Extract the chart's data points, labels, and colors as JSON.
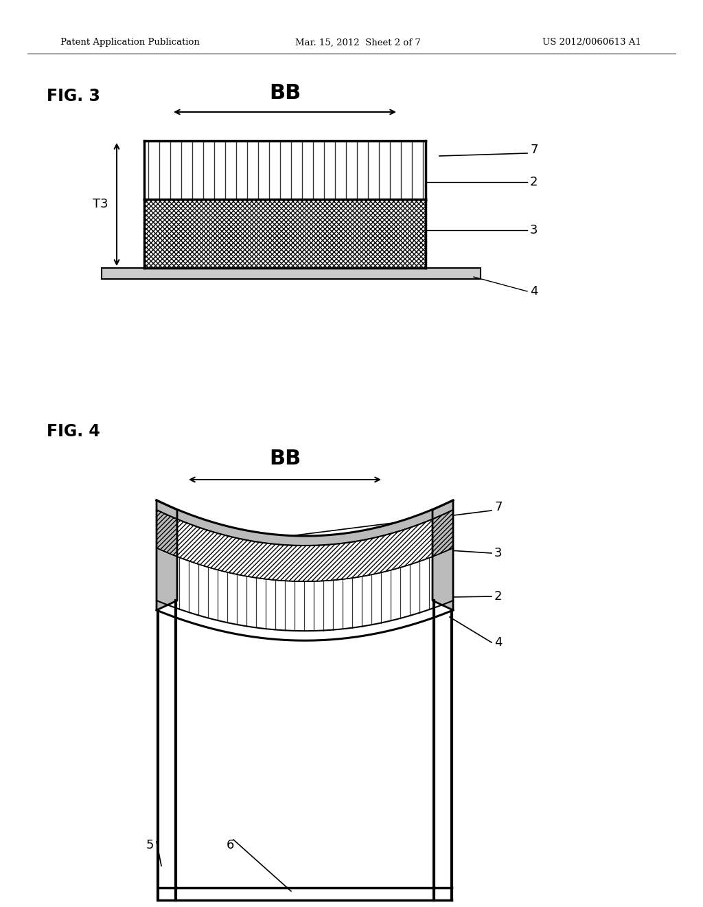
{
  "header_left": "Patent Application Publication",
  "header_mid": "Mar. 15, 2012  Sheet 2 of 7",
  "header_right": "US 2012/0060613 A1",
  "fig3_label": "FIG. 3",
  "fig4_label": "FIG. 4",
  "bb_label": "BB",
  "t3_label": "T3",
  "background_color": "#ffffff",
  "line_color": "#000000",
  "label_2": "2",
  "label_3": "3",
  "label_4": "4",
  "label_5": "5",
  "label_6": "6",
  "label_7": "7"
}
